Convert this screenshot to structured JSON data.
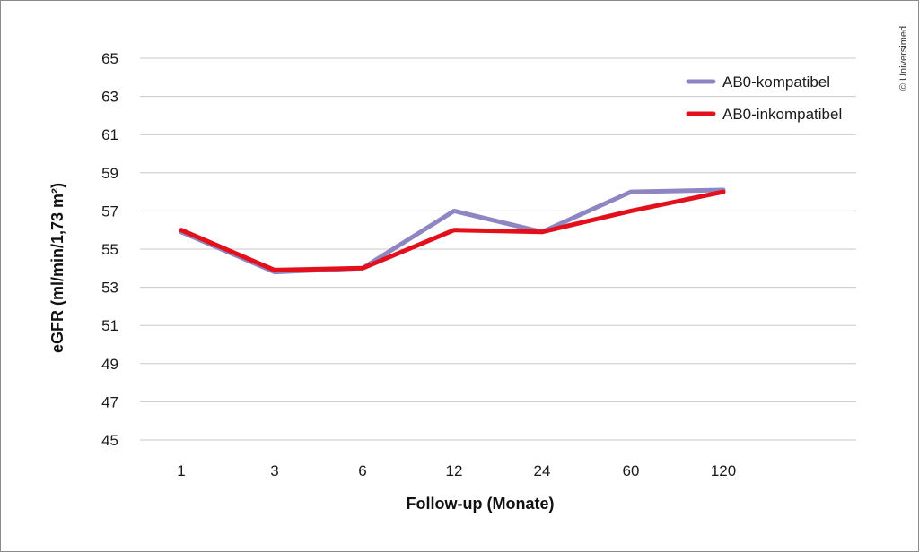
{
  "chart_data": {
    "type": "line",
    "categories": [
      "1",
      "3",
      "6",
      "12",
      "24",
      "60",
      "120"
    ],
    "series": [
      {
        "name": "AB0-kompatibel",
        "color": "#8e86c2",
        "values": [
          55.9,
          53.8,
          54.0,
          57.0,
          55.9,
          58.0,
          58.1
        ]
      },
      {
        "name": "AB0-inkompatibel",
        "color": "#e3101b",
        "values": [
          56.0,
          53.9,
          54.0,
          56.0,
          55.9,
          57.0,
          58.0
        ]
      }
    ],
    "xlabel": "Follow-up (Monate)",
    "ylabel": "eGFR (ml/min/1,73 m²)",
    "ylim": [
      45,
      65
    ],
    "yticks": [
      45,
      47,
      49,
      51,
      53,
      55,
      57,
      59,
      61,
      63,
      65
    ],
    "grid": true,
    "legend_position": "top-right"
  },
  "credit": "© Universimed"
}
